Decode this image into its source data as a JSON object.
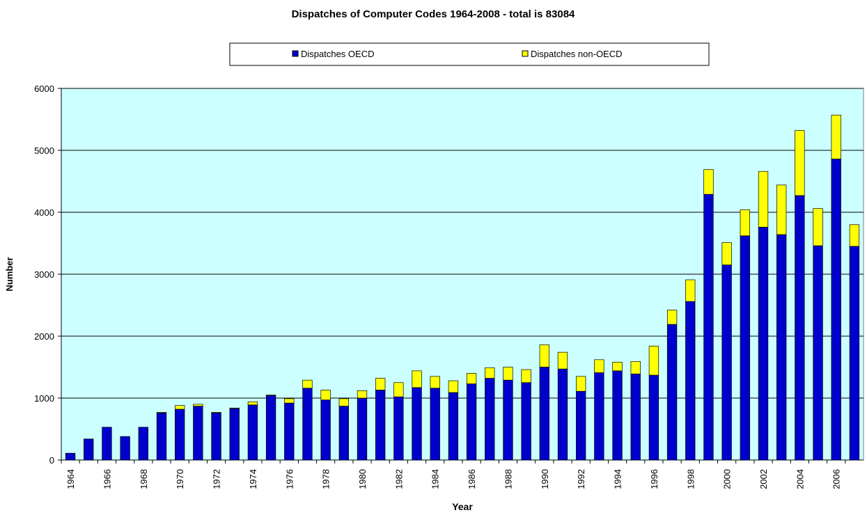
{
  "chart_data": {
    "type": "stacked_bar",
    "title": "Dispatches of Computer Codes 1964-2008 - total is 83084",
    "x_label": "Year",
    "y_label": "Number",
    "categories": [
      "1964",
      null,
      "1966",
      null,
      "1968",
      null,
      "1970",
      null,
      "1972",
      null,
      "1974",
      null,
      "1976",
      null,
      "1978",
      null,
      "1980",
      null,
      "1982",
      null,
      "1984",
      null,
      "1986",
      null,
      "1988",
      null,
      "1990",
      null,
      "1992",
      null,
      "1994",
      null,
      "1996",
      null,
      "1998",
      null,
      "2000",
      null,
      "2002",
      null,
      "2004",
      null,
      "2006",
      null
    ],
    "series": [
      {
        "name": "Dispatches OECD",
        "color": "#0000cc",
        "values": [
          110,
          340,
          530,
          380,
          530,
          760,
          820,
          870,
          760,
          830,
          890,
          1040,
          920,
          1160,
          970,
          870,
          1000,
          1130,
          1020,
          1170,
          1160,
          1090,
          1230,
          1320,
          1290,
          1250,
          1500,
          1470,
          1110,
          1410,
          1440,
          1390,
          1370,
          2190,
          2560,
          4290,
          3150,
          3620,
          3760,
          3640,
          4270,
          3460,
          4860,
          3450
        ]
      },
      {
        "name": "Dispatches non-OECD",
        "color": "#ffff00",
        "values": [
          0,
          0,
          0,
          0,
          0,
          10,
          60,
          30,
          10,
          10,
          50,
          10,
          70,
          130,
          160,
          120,
          120,
          190,
          230,
          270,
          190,
          190,
          170,
          170,
          210,
          210,
          360,
          270,
          240,
          210,
          140,
          200,
          470,
          230,
          350,
          400,
          360,
          420,
          900,
          800,
          1050,
          600,
          710,
          350
        ]
      }
    ],
    "ylim": [
      0,
      6000
    ],
    "yticks": [
      0,
      1000,
      2000,
      3000,
      4000,
      5000,
      6000
    ],
    "grid": true,
    "legend": "top"
  }
}
